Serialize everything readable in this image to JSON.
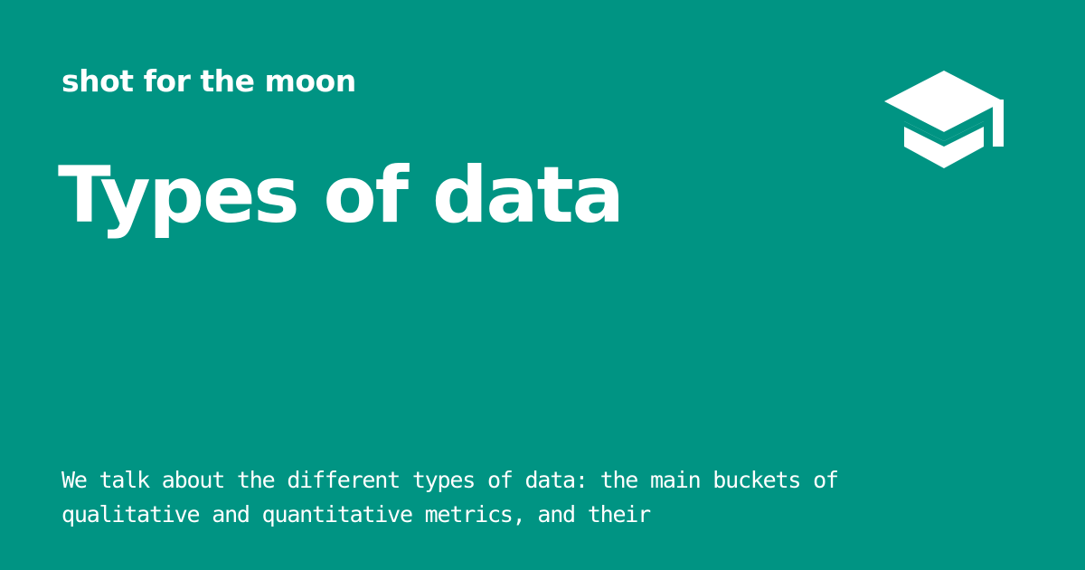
{
  "header": {
    "site_name": "shot for the moon"
  },
  "main": {
    "title": "Types of data",
    "description": "We talk about the different types of data: the main buckets of qualitative and quantitative metrics, and their"
  },
  "logo": {
    "icon": "graduation-cap-icon"
  },
  "colors": {
    "background": "#009483",
    "foreground": "#ffffff"
  }
}
